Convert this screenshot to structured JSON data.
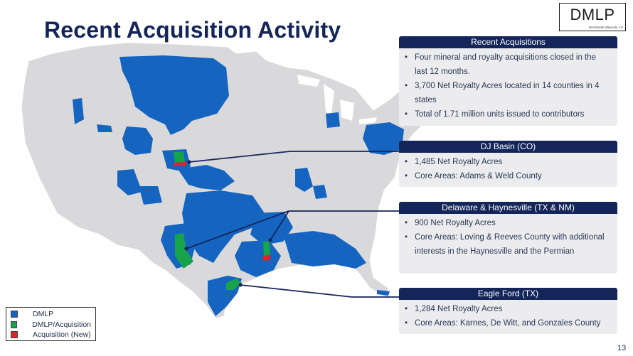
{
  "title": "Recent Acquisition Activity",
  "logo": {
    "main": "DMLP",
    "sub": "Dorchester Minerals, LP"
  },
  "panels": {
    "recent": {
      "header": "Recent Acquisitions",
      "bullets": [
        "Four mineral and royalty acquisitions closed in the last 12 months.",
        "3,700 Net Royalty Acres located in 14 counties in 4 states",
        "Total of 1.71 million units issued to contributors"
      ]
    },
    "dj": {
      "header": "DJ Basin (CO)",
      "bullets": [
        "1,485 Net Royalty Acres",
        "Core Areas: Adams & Weld County"
      ]
    },
    "delaware": {
      "header": "Delaware & Haynesville (TX & NM)",
      "bullets": [
        "900 Net Royalty Acres",
        "Core Areas: Loving & Reeves County with additional interests in the Haynesville and the Permian"
      ]
    },
    "eagle_ford": {
      "header": "Eagle Ford (TX)",
      "bullets": [
        "1,284 Net Royalty Acres",
        "Core Areas: Karnes, De Witt, and Gonzales County"
      ]
    }
  },
  "legend": {
    "items": [
      {
        "label": "DMLP",
        "color": "#1565c0"
      },
      {
        "label": "DMLP/Acquisition",
        "color": "#16a34a"
      },
      {
        "label": "Acquisition (New)",
        "color": "#dc2626"
      }
    ]
  },
  "page_number": "13",
  "colors": {
    "navy": "#14255a",
    "dmlp": "#1565c0",
    "acquisition": "#16a34a",
    "new": "#dc2626",
    "land": "#d9d9db"
  }
}
